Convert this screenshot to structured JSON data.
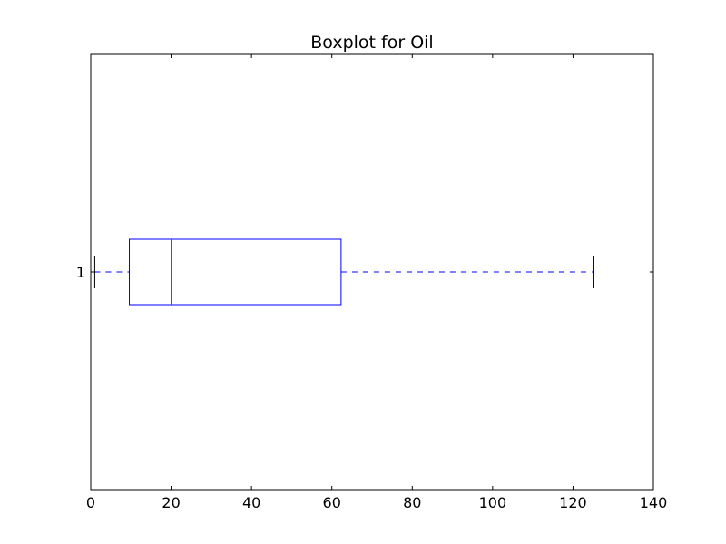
{
  "chart_data": {
    "type": "boxplot",
    "orientation": "horizontal",
    "title": "Boxplot for Oil",
    "xlabel": "",
    "ylabel": "",
    "xlim": [
      0,
      140
    ],
    "x_ticks": [
      0,
      20,
      40,
      60,
      80,
      100,
      120,
      140
    ],
    "x_tick_labels": [
      "0",
      "20",
      "40",
      "60",
      "80",
      "100",
      "120",
      "140"
    ],
    "categories": [
      "1"
    ],
    "boxes": [
      {
        "label": "1",
        "whisker_low": 1,
        "q1": 9.6,
        "median": 20,
        "q3": 62.3,
        "whisker_high": 125
      }
    ],
    "grid": false,
    "colors": {
      "box": "#0000ff",
      "median": "#ff0000",
      "whisker": "#0000ff",
      "cap": "#000000",
      "axes": "#000000"
    }
  }
}
